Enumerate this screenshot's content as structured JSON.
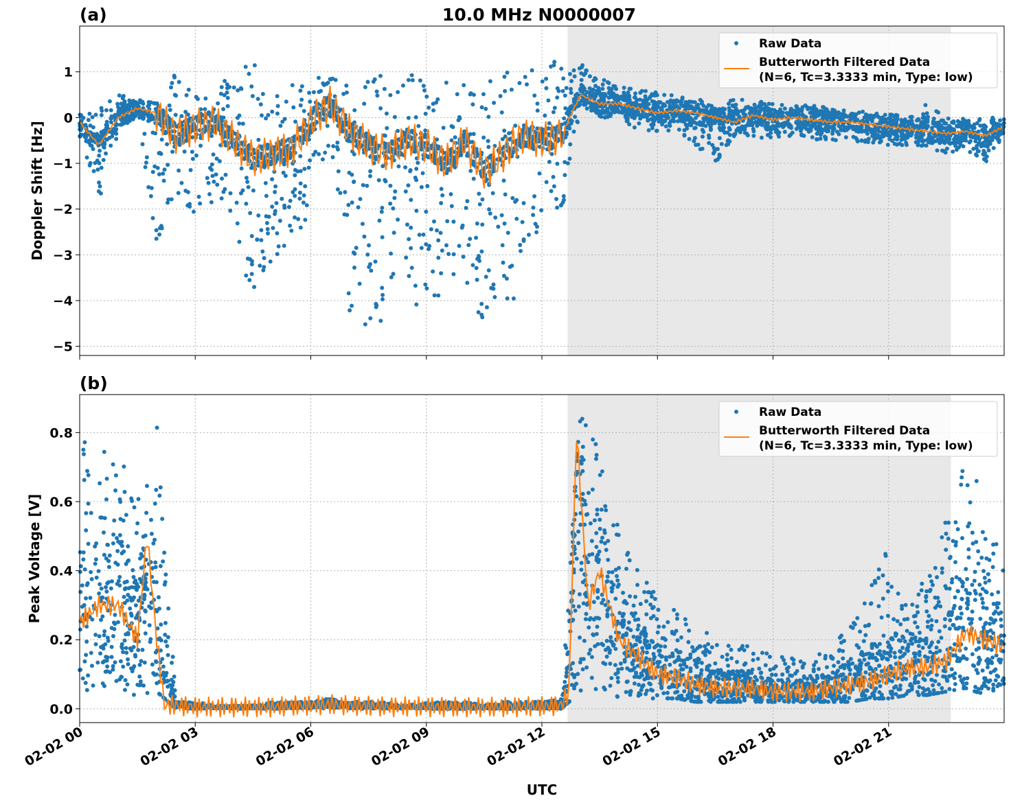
{
  "chart_data": [
    {
      "type": "scatter+line",
      "panel_label": "(a)",
      "title": "10.0 MHz N0000007",
      "xlabel": "",
      "ylabel": "Doppler Shift [Hz]",
      "ylim": [
        -5.2,
        2.0
      ],
      "yticks": [
        1,
        0,
        -1,
        -2,
        -3,
        -4,
        -5
      ],
      "ytick_labels": [
        "1",
        "0",
        "−1",
        "−2",
        "−3",
        "−4",
        "−5"
      ],
      "xlim": [
        "02-02 00:00",
        "02-03 00:00"
      ],
      "grid": true,
      "legend_position": "top-right",
      "shaded_region": [
        "02-02 12:40",
        "02-02 22:37"
      ],
      "shade_color": "#e8e8e8",
      "series": [
        {
          "name": "Raw Data",
          "kind": "scatter",
          "color": "#1f77b4",
          "x_hours": [
            0,
            0.5,
            1,
            1.5,
            2,
            2.5,
            3,
            3.5,
            4,
            4.5,
            5,
            5.5,
            6,
            6.5,
            7,
            7.5,
            8,
            8.5,
            9,
            9.5,
            10,
            10.5,
            11,
            11.5,
            12,
            12.5,
            13,
            13.5,
            14,
            14.5,
            15,
            15.5,
            16,
            16.5,
            17,
            17.5,
            18,
            18.5,
            19,
            19.5,
            20,
            20.5,
            21,
            21.5,
            22,
            22.5,
            23,
            23.5,
            24
          ],
          "low": [
            -0.4,
            -2.0,
            -0.3,
            0.0,
            -2.8,
            -1.6,
            -2.2,
            -1.8,
            -2.5,
            -4.0,
            -3.5,
            -3.0,
            -2.0,
            -0.5,
            -4.4,
            -4.8,
            -4.5,
            -4.0,
            -4.3,
            -4.0,
            -4.2,
            -4.4,
            -4.2,
            -3.8,
            -2.0,
            -2.3,
            0.2,
            0.0,
            0.0,
            -0.3,
            -0.3,
            -0.3,
            -0.6,
            -1.0,
            -0.4,
            -0.4,
            -0.5,
            -0.4,
            -0.5,
            -0.5,
            -0.5,
            -0.6,
            -0.6,
            -0.6,
            -0.7,
            -0.8,
            -0.7,
            -1.0,
            -0.4
          ],
          "high": [
            0.1,
            0.2,
            0.5,
            0.4,
            0.3,
            1.0,
            0.6,
            0.7,
            0.9,
            1.3,
            0.8,
            0.8,
            0.9,
            0.9,
            1.1,
            0.8,
            1.0,
            0.9,
            1.1,
            0.8,
            0.8,
            0.7,
            1.1,
            1.0,
            1.5,
            1.2,
            1.2,
            0.9,
            0.7,
            0.6,
            0.6,
            0.5,
            0.4,
            0.4,
            0.4,
            0.4,
            0.3,
            0.3,
            0.3,
            0.2,
            0.2,
            0.1,
            0.1,
            0.0,
            0.3,
            0.0,
            0.0,
            0.0,
            0.0
          ]
        },
        {
          "name": "Butterworth Filtered Data\n(N=6, Tc=3.3333 min, Type: low)",
          "kind": "line",
          "color": "#ff7f0e",
          "x_hours": [
            0,
            0.5,
            1,
            1.5,
            2,
            2.5,
            3,
            3.5,
            4,
            4.5,
            5,
            5.5,
            6,
            6.5,
            7,
            7.5,
            8,
            8.5,
            9,
            9.5,
            10,
            10.5,
            11,
            11.5,
            12,
            12.5,
            13,
            13.5,
            14,
            14.5,
            15,
            15.5,
            16,
            16.5,
            17,
            17.5,
            18,
            18.5,
            19,
            19.5,
            20,
            20.5,
            21,
            21.5,
            22,
            22.5,
            23,
            23.5,
            24
          ],
          "y": [
            -0.1,
            -0.6,
            0.0,
            0.2,
            0.1,
            -0.4,
            -0.2,
            -0.1,
            -0.5,
            -0.9,
            -0.8,
            -0.7,
            -0.1,
            0.3,
            -0.3,
            -0.6,
            -0.8,
            -0.5,
            -0.6,
            -1.0,
            -0.5,
            -1.2,
            -0.8,
            -0.4,
            -0.5,
            -0.4,
            0.5,
            0.3,
            0.3,
            0.2,
            0.1,
            0.15,
            0.1,
            0.0,
            -0.1,
            0.05,
            -0.05,
            0.0,
            -0.05,
            -0.1,
            -0.1,
            -0.15,
            -0.2,
            -0.25,
            -0.3,
            -0.35,
            -0.3,
            -0.4,
            -0.2
          ]
        }
      ],
      "legend": [
        "Raw Data",
        "Butterworth Filtered Data",
        "(N=6, Tc=3.3333 min, Type: low)"
      ]
    },
    {
      "type": "scatter+line",
      "panel_label": "(b)",
      "xlabel": "UTC",
      "ylabel": "Peak Voltage [V]",
      "ylim": [
        -0.04,
        0.91
      ],
      "yticks": [
        0.0,
        0.2,
        0.4,
        0.6,
        0.8
      ],
      "ytick_labels": [
        "0.0",
        "0.2",
        "0.4",
        "0.6",
        "0.8"
      ],
      "xlim": [
        "02-02 00:00",
        "02-03 00:00"
      ],
      "xtick_labels": [
        "02-02 00",
        "02-02 03",
        "02-02 06",
        "02-02 09",
        "02-02 12",
        "02-02 15",
        "02-02 18",
        "02-02 21"
      ],
      "grid": true,
      "legend_position": "top-right",
      "shaded_region": [
        "02-02 12:40",
        "02-02 22:37"
      ],
      "series": [
        {
          "name": "Raw Data",
          "kind": "scatter",
          "color": "#1f77b4",
          "x_hours": [
            0,
            0.5,
            1,
            1.5,
            2,
            2.5,
            3,
            3.5,
            4,
            4.5,
            5,
            5.5,
            6,
            6.5,
            7,
            7.5,
            8,
            8.5,
            9,
            9.5,
            10,
            10.5,
            11,
            11.5,
            12,
            12.5,
            13,
            13.5,
            14,
            14.5,
            15,
            15.5,
            16,
            16.5,
            17,
            17.5,
            18,
            18.5,
            19,
            19.5,
            20,
            20.5,
            21,
            21.5,
            22,
            22.5,
            23,
            23.5,
            24
          ],
          "low": [
            0.03,
            0.05,
            0.06,
            0.03,
            0.05,
            0.0,
            0.0,
            0.0,
            0.0,
            0.0,
            0.0,
            0.0,
            0.0,
            0.0,
            0.0,
            0.0,
            0.0,
            0.0,
            0.0,
            0.0,
            0.0,
            0.0,
            0.0,
            0.0,
            0.0,
            0.0,
            0.05,
            0.05,
            0.03,
            0.03,
            0.03,
            0.03,
            0.02,
            0.02,
            0.02,
            0.02,
            0.02,
            0.02,
            0.02,
            0.02,
            0.02,
            0.03,
            0.03,
            0.04,
            0.04,
            0.05,
            0.06,
            0.04,
            0.04
          ],
          "high": [
            0.78,
            0.77,
            0.79,
            0.6,
            0.83,
            0.02,
            0.02,
            0.01,
            0.01,
            0.01,
            0.02,
            0.02,
            0.02,
            0.03,
            0.02,
            0.02,
            0.02,
            0.01,
            0.02,
            0.02,
            0.02,
            0.01,
            0.02,
            0.02,
            0.02,
            0.03,
            0.87,
            0.74,
            0.52,
            0.4,
            0.33,
            0.3,
            0.25,
            0.2,
            0.2,
            0.18,
            0.16,
            0.15,
            0.15,
            0.18,
            0.25,
            0.35,
            0.47,
            0.3,
            0.4,
            0.55,
            0.74,
            0.6,
            0.4
          ]
        },
        {
          "name": "Butterworth Filtered Data\n(N=6, Tc=3.3333 min, Type: low)",
          "kind": "line",
          "color": "#ff7f0e",
          "x_hours": [
            0,
            0.5,
            1,
            1.5,
            1.75,
            2,
            2.2,
            2.5,
            3,
            3.5,
            4,
            4.5,
            5,
            5.5,
            6,
            6.5,
            7,
            7.5,
            8,
            8.5,
            9,
            9.5,
            10,
            10.5,
            11,
            11.5,
            12,
            12.5,
            12.7,
            12.9,
            13.2,
            13.5,
            14,
            14.5,
            15,
            15.5,
            16,
            16.5,
            17,
            17.5,
            18,
            18.5,
            19,
            19.5,
            20,
            20.5,
            21,
            21.5,
            22,
            22.5,
            23,
            23.5,
            24
          ],
          "y": [
            0.25,
            0.3,
            0.3,
            0.2,
            0.5,
            0.2,
            0.01,
            0.01,
            0.005,
            0.005,
            0.005,
            0.005,
            0.005,
            0.008,
            0.01,
            0.012,
            0.01,
            0.008,
            0.006,
            0.006,
            0.006,
            0.005,
            0.005,
            0.005,
            0.005,
            0.006,
            0.007,
            0.01,
            0.05,
            0.8,
            0.3,
            0.4,
            0.2,
            0.15,
            0.1,
            0.09,
            0.07,
            0.06,
            0.06,
            0.06,
            0.05,
            0.05,
            0.05,
            0.06,
            0.07,
            0.08,
            0.1,
            0.12,
            0.12,
            0.14,
            0.22,
            0.2,
            0.18
          ]
        }
      ],
      "legend": [
        "Raw Data",
        "Butterworth Filtered Data",
        "(N=6, Tc=3.3333 min, Type: low)"
      ]
    }
  ]
}
